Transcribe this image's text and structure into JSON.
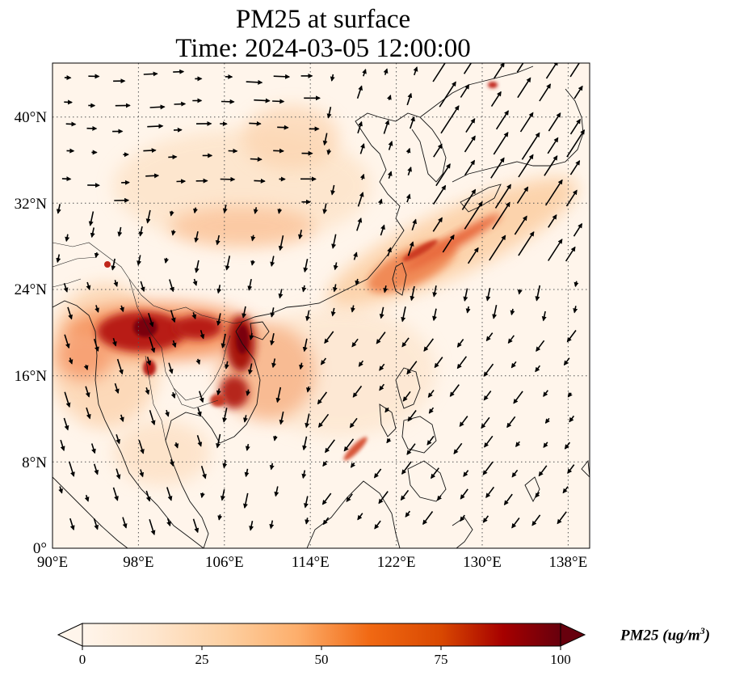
{
  "title": {
    "line1": "PM25 at surface",
    "line2": "Time: 2024-03-05 12:00:00"
  },
  "map": {
    "x_ticks": [
      "90°E",
      "98°E",
      "106°E",
      "114°E",
      "122°E",
      "130°E",
      "138°E"
    ],
    "y_ticks": [
      "40°N",
      "32°N",
      "24°N",
      "16°N",
      "8°N",
      "0°"
    ],
    "gridlines": "dotted",
    "lon_range": [
      90,
      140
    ],
    "lat_range": [
      0,
      45
    ],
    "overlay": "wind vectors (arrows)",
    "high_concentration_regions": [
      {
        "region": "northern Laos / Yunnan / Myanmar border",
        "level": "very high"
      },
      {
        "region": "Vietnam coast / Gulf of Tonkin",
        "level": "very high"
      },
      {
        "region": "Cambodia / southern Vietnam",
        "level": "high"
      },
      {
        "region": "East China Sea plume toward Japan",
        "level": "moderate-high"
      }
    ]
  },
  "colorbar": {
    "ticks": [
      "0",
      "25",
      "50",
      "75",
      "100"
    ],
    "label_main": "PM25 (ug/m",
    "label_exp": "3",
    "label_close": ")",
    "colormap": [
      "#fff5eb",
      "#fee6ce",
      "#fdd0a2",
      "#fdae6b",
      "#fd8d3c",
      "#f16913",
      "#d94801",
      "#a63603",
      "#7f2704",
      "#67000d"
    ],
    "extend": "both"
  }
}
